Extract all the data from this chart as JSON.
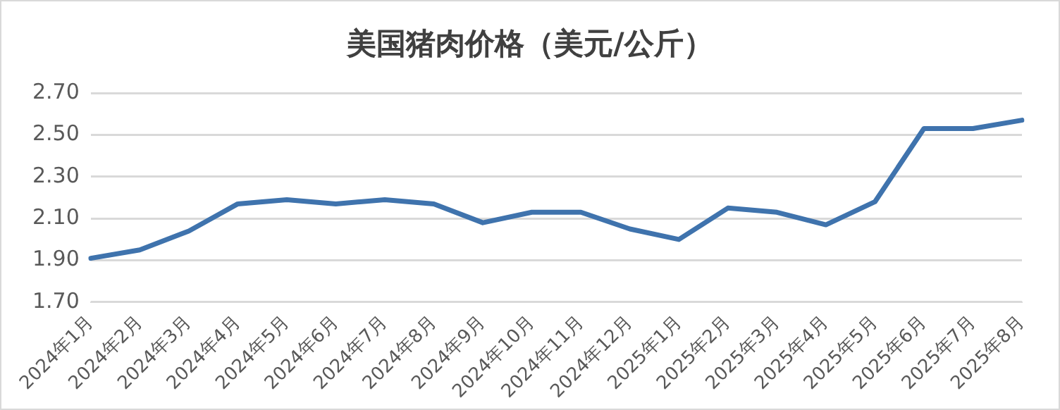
{
  "chart_data": {
    "type": "line",
    "title": "美国猪肉价格（美元/公斤）",
    "categories": [
      "2024年1月",
      "2024年2月",
      "2024年3月",
      "2024年4月",
      "2024年5月",
      "2024年6月",
      "2024年7月",
      "2024年8月",
      "2024年9月",
      "2024年10月",
      "2024年11月",
      "2024年12月",
      "2025年1月",
      "2025年2月",
      "2025年3月",
      "2025年4月",
      "2025年5月",
      "2025年6月",
      "2025年7月",
      "2025年8月"
    ],
    "series": [
      {
        "color": "#3f73ad",
        "values": [
          1.91,
          1.95,
          2.04,
          2.17,
          2.19,
          2.17,
          2.19,
          2.17,
          2.08,
          2.13,
          2.13,
          2.05,
          2.0,
          2.15,
          2.13,
          2.07,
          2.18,
          2.53,
          2.53,
          2.57
        ]
      }
    ],
    "ylim": [
      1.7,
      2.7
    ],
    "yticks": [
      {
        "value": 1.7,
        "label": "1.70"
      },
      {
        "value": 1.9,
        "label": "1.90"
      },
      {
        "value": 2.1,
        "label": "2.10"
      },
      {
        "value": 2.3,
        "label": "2.30"
      },
      {
        "value": 2.5,
        "label": "2.50"
      },
      {
        "value": 2.7,
        "label": "2.70"
      }
    ],
    "grid": "y",
    "legend": false,
    "marker": "none",
    "line_style": "solid"
  }
}
